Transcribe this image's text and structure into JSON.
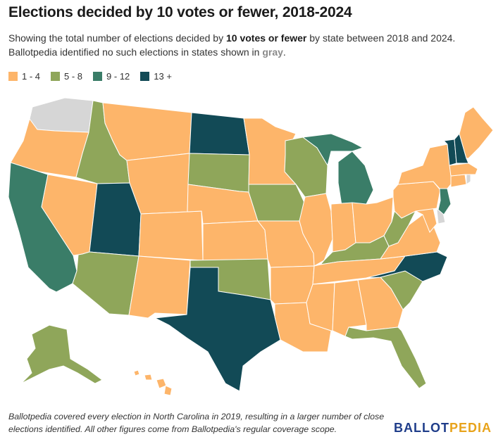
{
  "title": "Elections decided by 10 votes or fewer, 2018-2024",
  "subtitle": {
    "part1": "Showing the total number of elections decided by ",
    "bold": "10 votes or fewer",
    "part2": " by state between 2018 and 2024. Ballotpedia identified no such elections in states shown in ",
    "gray_word": "gray",
    "part3": "."
  },
  "legend": [
    {
      "label": "1 - 4",
      "color": "#fdb56a"
    },
    {
      "label": "5 - 8",
      "color": "#8fa65a"
    },
    {
      "label": "9 - 12",
      "color": "#3a7d68"
    },
    {
      "label": "13 +",
      "color": "#124a56"
    }
  ],
  "no_data_color": "#d6d6d6",
  "footnote": "Ballotpedia covered every election in North Carolina in 2019, resulting in a larger number of close elections identified. All other figures come from Ballotpedia's regular coverage scope.",
  "logo": {
    "ballot": "BALLOT",
    "pedia": "PEDIA"
  },
  "state_categories": {
    "WA": "none",
    "OR": "1-4",
    "CA": "9-12",
    "NV": "1-4",
    "ID": "5-8",
    "MT": "1-4",
    "WY": "1-4",
    "UT": "13+",
    "AZ": "5-8",
    "NM": "1-4",
    "CO": "1-4",
    "ND": "13+",
    "SD": "5-8",
    "NE": "1-4",
    "KS": "1-4",
    "OK": "5-8",
    "TX": "13+",
    "MN": "1-4",
    "IA": "5-8",
    "MO": "1-4",
    "AR": "1-4",
    "LA": "1-4",
    "WI": "5-8",
    "IL": "1-4",
    "MI": "9-12",
    "IN": "1-4",
    "OH": "1-4",
    "KY": "5-8",
    "TN": "1-4",
    "MS": "1-4",
    "AL": "1-4",
    "GA": "1-4",
    "FL": "5-8",
    "SC": "5-8",
    "NC": "13+",
    "VA": "1-4",
    "WV": "5-8",
    "MD": "1-4",
    "DE": "none",
    "PA": "1-4",
    "NJ": "9-12",
    "NY": "1-4",
    "CT": "1-4",
    "RI": "none",
    "MA": "1-4",
    "VT": "13+",
    "NH": "13+",
    "ME": "1-4",
    "AK": "5-8",
    "HI": "1-4"
  }
}
